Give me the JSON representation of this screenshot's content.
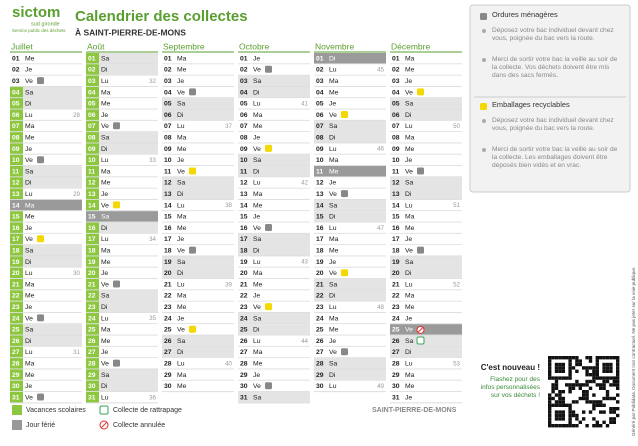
{
  "header": {
    "logo": "sictom",
    "logo_sub": "sud gironde",
    "logo_tag": "Service public des déchets",
    "title": "Calendrier des collectes",
    "subtitle": "À SAINT-PIERRE-DE-MONS"
  },
  "months": [
    {
      "name": "Juillet",
      "days": [
        {
          "d": "01",
          "w": "Me"
        },
        {
          "d": "02",
          "w": "Je"
        },
        {
          "d": "03",
          "w": "Ve",
          "c": "om"
        },
        {
          "d": "04",
          "w": "Sa",
          "s": "vac"
        },
        {
          "d": "05",
          "w": "Di",
          "s": "vac"
        },
        {
          "d": "06",
          "w": "Lu",
          "wk": "28",
          "s": "vac"
        },
        {
          "d": "07",
          "w": "Ma",
          "s": "vac"
        },
        {
          "d": "08",
          "w": "Me",
          "s": "vac"
        },
        {
          "d": "09",
          "w": "Je",
          "s": "vac"
        },
        {
          "d": "10",
          "w": "Ve",
          "c": "om",
          "s": "vac"
        },
        {
          "d": "11",
          "w": "Sa",
          "s": "vac"
        },
        {
          "d": "12",
          "w": "Di",
          "s": "vac"
        },
        {
          "d": "13",
          "w": "Lu",
          "wk": "29",
          "s": "vac"
        },
        {
          "d": "14",
          "w": "Ma",
          "s": "ferie"
        },
        {
          "d": "15",
          "w": "Me",
          "s": "vac"
        },
        {
          "d": "16",
          "w": "Je",
          "s": "vac"
        },
        {
          "d": "17",
          "w": "Ve",
          "c": "rec",
          "s": "vac"
        },
        {
          "d": "18",
          "w": "Sa",
          "s": "vac"
        },
        {
          "d": "19",
          "w": "Di",
          "s": "vac"
        },
        {
          "d": "20",
          "w": "Lu",
          "wk": "30",
          "s": "vac"
        },
        {
          "d": "21",
          "w": "Ma",
          "s": "vac"
        },
        {
          "d": "22",
          "w": "Me",
          "s": "vac"
        },
        {
          "d": "23",
          "w": "Je",
          "s": "vac"
        },
        {
          "d": "24",
          "w": "Ve",
          "c": "om",
          "s": "vac"
        },
        {
          "d": "25",
          "w": "Sa",
          "s": "vac"
        },
        {
          "d": "26",
          "w": "Di",
          "s": "vac"
        },
        {
          "d": "27",
          "w": "Lu",
          "wk": "31",
          "s": "vac"
        },
        {
          "d": "28",
          "w": "Ma",
          "s": "vac"
        },
        {
          "d": "29",
          "w": "Me",
          "s": "vac"
        },
        {
          "d": "30",
          "w": "Je",
          "s": "vac"
        },
        {
          "d": "31",
          "w": "Ve",
          "c": "om",
          "s": "vac"
        }
      ]
    },
    {
      "name": "Août",
      "days": [
        {
          "d": "01",
          "w": "Sa",
          "s": "vac"
        },
        {
          "d": "02",
          "w": "Di",
          "s": "vac"
        },
        {
          "d": "03",
          "w": "Lu",
          "wk": "32",
          "s": "vac"
        },
        {
          "d": "04",
          "w": "Ma",
          "s": "vac"
        },
        {
          "d": "05",
          "w": "Me",
          "s": "vac"
        },
        {
          "d": "06",
          "w": "Je",
          "s": "vac"
        },
        {
          "d": "07",
          "w": "Ve",
          "c": "om",
          "s": "vac"
        },
        {
          "d": "08",
          "w": "Sa",
          "s": "vac"
        },
        {
          "d": "09",
          "w": "Di",
          "s": "vac"
        },
        {
          "d": "10",
          "w": "Lu",
          "wk": "33",
          "s": "vac"
        },
        {
          "d": "11",
          "w": "Ma",
          "s": "vac"
        },
        {
          "d": "12",
          "w": "Me",
          "s": "vac"
        },
        {
          "d": "13",
          "w": "Je",
          "s": "vac"
        },
        {
          "d": "14",
          "w": "Ve",
          "c": "rec",
          "s": "vac"
        },
        {
          "d": "15",
          "w": "Sa",
          "s": "ferie"
        },
        {
          "d": "16",
          "w": "Di",
          "s": "vac"
        },
        {
          "d": "17",
          "w": "Lu",
          "wk": "34",
          "s": "vac"
        },
        {
          "d": "18",
          "w": "Ma",
          "s": "vac"
        },
        {
          "d": "19",
          "w": "Me",
          "s": "vac"
        },
        {
          "d": "20",
          "w": "Je",
          "s": "vac"
        },
        {
          "d": "21",
          "w": "Ve",
          "c": "om",
          "s": "vac"
        },
        {
          "d": "22",
          "w": "Sa",
          "s": "vac"
        },
        {
          "d": "23",
          "w": "Di",
          "s": "vac"
        },
        {
          "d": "24",
          "w": "Lu",
          "wk": "35",
          "s": "vac"
        },
        {
          "d": "25",
          "w": "Ma",
          "s": "vac"
        },
        {
          "d": "26",
          "w": "Me",
          "s": "vac"
        },
        {
          "d": "27",
          "w": "Je",
          "s": "vac"
        },
        {
          "d": "28",
          "w": "Ve",
          "c": "om",
          "s": "vac"
        },
        {
          "d": "29",
          "w": "Sa",
          "s": "vac"
        },
        {
          "d": "30",
          "w": "Di",
          "s": "vac"
        },
        {
          "d": "31",
          "w": "Lu",
          "wk": "36",
          "s": "vac"
        }
      ]
    },
    {
      "name": "Septembre",
      "days": [
        {
          "d": "01",
          "w": "Ma"
        },
        {
          "d": "02",
          "w": "Me"
        },
        {
          "d": "03",
          "w": "Je"
        },
        {
          "d": "04",
          "w": "Ve",
          "c": "om"
        },
        {
          "d": "05",
          "w": "Sa"
        },
        {
          "d": "06",
          "w": "Di"
        },
        {
          "d": "07",
          "w": "Lu",
          "wk": "37"
        },
        {
          "d": "08",
          "w": "Ma"
        },
        {
          "d": "09",
          "w": "Me"
        },
        {
          "d": "10",
          "w": "Je"
        },
        {
          "d": "11",
          "w": "Ve",
          "c": "rec"
        },
        {
          "d": "12",
          "w": "Sa"
        },
        {
          "d": "13",
          "w": "Di"
        },
        {
          "d": "14",
          "w": "Lu",
          "wk": "38"
        },
        {
          "d": "15",
          "w": "Ma"
        },
        {
          "d": "16",
          "w": "Me"
        },
        {
          "d": "17",
          "w": "Je"
        },
        {
          "d": "18",
          "w": "Ve",
          "c": "om"
        },
        {
          "d": "19",
          "w": "Sa"
        },
        {
          "d": "20",
          "w": "Di"
        },
        {
          "d": "21",
          "w": "Lu",
          "wk": "39"
        },
        {
          "d": "22",
          "w": "Ma"
        },
        {
          "d": "23",
          "w": "Me"
        },
        {
          "d": "24",
          "w": "Je"
        },
        {
          "d": "25",
          "w": "Ve",
          "c": "rec"
        },
        {
          "d": "26",
          "w": "Sa"
        },
        {
          "d": "27",
          "w": "Di"
        },
        {
          "d": "28",
          "w": "Lu",
          "wk": "40"
        },
        {
          "d": "29",
          "w": "Ma"
        },
        {
          "d": "30",
          "w": "Me"
        }
      ]
    },
    {
      "name": "Octobre",
      "days": [
        {
          "d": "01",
          "w": "Je"
        },
        {
          "d": "02",
          "w": "Ve",
          "c": "om"
        },
        {
          "d": "03",
          "w": "Sa"
        },
        {
          "d": "04",
          "w": "Di"
        },
        {
          "d": "05",
          "w": "Lu",
          "wk": "41"
        },
        {
          "d": "06",
          "w": "Ma"
        },
        {
          "d": "07",
          "w": "Me"
        },
        {
          "d": "08",
          "w": "Je"
        },
        {
          "d": "09",
          "w": "Ve",
          "c": "rec"
        },
        {
          "d": "10",
          "w": "Sa"
        },
        {
          "d": "11",
          "w": "Di"
        },
        {
          "d": "12",
          "w": "Lu",
          "wk": "42"
        },
        {
          "d": "13",
          "w": "Ma"
        },
        {
          "d": "14",
          "w": "Me"
        },
        {
          "d": "15",
          "w": "Je"
        },
        {
          "d": "16",
          "w": "Ve",
          "c": "om"
        },
        {
          "d": "17",
          "w": "Sa"
        },
        {
          "d": "18",
          "w": "Di"
        },
        {
          "d": "19",
          "w": "Lu",
          "wk": "43"
        },
        {
          "d": "20",
          "w": "Ma"
        },
        {
          "d": "21",
          "w": "Me"
        },
        {
          "d": "22",
          "w": "Je"
        },
        {
          "d": "23",
          "w": "Ve",
          "c": "rec"
        },
        {
          "d": "24",
          "w": "Sa"
        },
        {
          "d": "25",
          "w": "Di"
        },
        {
          "d": "26",
          "w": "Lu",
          "wk": "44"
        },
        {
          "d": "27",
          "w": "Ma"
        },
        {
          "d": "28",
          "w": "Me"
        },
        {
          "d": "29",
          "w": "Je"
        },
        {
          "d": "30",
          "w": "Ve",
          "c": "om"
        },
        {
          "d": "31",
          "w": "Sa"
        }
      ]
    },
    {
      "name": "Novembre",
      "days": [
        {
          "d": "01",
          "w": "Di",
          "s": "ferie"
        },
        {
          "d": "02",
          "w": "Lu",
          "wk": "45"
        },
        {
          "d": "03",
          "w": "Ma"
        },
        {
          "d": "04",
          "w": "Me"
        },
        {
          "d": "05",
          "w": "Je"
        },
        {
          "d": "06",
          "w": "Ve",
          "c": "rec"
        },
        {
          "d": "07",
          "w": "Sa"
        },
        {
          "d": "08",
          "w": "Di"
        },
        {
          "d": "09",
          "w": "Lu",
          "wk": "46"
        },
        {
          "d": "10",
          "w": "Ma"
        },
        {
          "d": "11",
          "w": "Me",
          "s": "ferie"
        },
        {
          "d": "12",
          "w": "Je"
        },
        {
          "d": "13",
          "w": "Ve",
          "c": "om"
        },
        {
          "d": "14",
          "w": "Sa"
        },
        {
          "d": "15",
          "w": "Di"
        },
        {
          "d": "16",
          "w": "Lu",
          "wk": "47"
        },
        {
          "d": "17",
          "w": "Ma"
        },
        {
          "d": "18",
          "w": "Me"
        },
        {
          "d": "19",
          "w": "Je"
        },
        {
          "d": "20",
          "w": "Ve",
          "c": "rec"
        },
        {
          "d": "21",
          "w": "Sa"
        },
        {
          "d": "22",
          "w": "Di"
        },
        {
          "d": "23",
          "w": "Lu",
          "wk": "48"
        },
        {
          "d": "24",
          "w": "Ma"
        },
        {
          "d": "25",
          "w": "Me"
        },
        {
          "d": "26",
          "w": "Je"
        },
        {
          "d": "27",
          "w": "Ve",
          "c": "om"
        },
        {
          "d": "28",
          "w": "Sa"
        },
        {
          "d": "29",
          "w": "Di"
        },
        {
          "d": "30",
          "w": "Lu",
          "wk": "49"
        }
      ]
    },
    {
      "name": "Décembre",
      "days": [
        {
          "d": "01",
          "w": "Ma"
        },
        {
          "d": "02",
          "w": "Me"
        },
        {
          "d": "03",
          "w": "Je"
        },
        {
          "d": "04",
          "w": "Ve",
          "c": "rec"
        },
        {
          "d": "05",
          "w": "Sa"
        },
        {
          "d": "06",
          "w": "Di"
        },
        {
          "d": "07",
          "w": "Lu",
          "wk": "50"
        },
        {
          "d": "08",
          "w": "Ma"
        },
        {
          "d": "09",
          "w": "Me"
        },
        {
          "d": "10",
          "w": "Je"
        },
        {
          "d": "11",
          "w": "Ve",
          "c": "om"
        },
        {
          "d": "12",
          "w": "Sa"
        },
        {
          "d": "13",
          "w": "Di"
        },
        {
          "d": "14",
          "w": "Lu",
          "wk": "51"
        },
        {
          "d": "15",
          "w": "Ma"
        },
        {
          "d": "16",
          "w": "Me"
        },
        {
          "d": "17",
          "w": "Je"
        },
        {
          "d": "18",
          "w": "Ve",
          "c": "om"
        },
        {
          "d": "19",
          "w": "Sa"
        },
        {
          "d": "20",
          "w": "Di"
        },
        {
          "d": "21",
          "w": "Lu",
          "wk": "52"
        },
        {
          "d": "22",
          "w": "Ma"
        },
        {
          "d": "23",
          "w": "Me"
        },
        {
          "d": "24",
          "w": "Je"
        },
        {
          "d": "25",
          "w": "Ve",
          "c": "annulee",
          "s": "ferie"
        },
        {
          "d": "26",
          "w": "Sa",
          "c": "rattrapage"
        },
        {
          "d": "27",
          "w": "Di"
        },
        {
          "d": "28",
          "w": "Lu",
          "wk": "53"
        },
        {
          "d": "29",
          "w": "Ma"
        },
        {
          "d": "30",
          "w": "Me"
        },
        {
          "d": "31",
          "w": "Je"
        }
      ]
    }
  ],
  "info": {
    "om_title": "Ordures ménagères",
    "om_1": "Déposez votre bac individuel devant chez vous, poignée du bac vers la route.",
    "om_2": "Merci de sortir votre bac la veille au soir de la collecte. Vos déchets doivent être mis dans des sacs fermés.",
    "rec_title": "Emballages recyclables",
    "rec_1": "Déposez votre bac individuel devant chez vous, poignée du bac vers la route.",
    "rec_2": "Merci de sortir votre bac la veille au soir de la collecte. Les emballages doivent être déposés bien vidés et en vrac."
  },
  "nouveau": {
    "title": "C'est nouveau !",
    "text": "Flashez pour des infos personnalisées sur vos déchets !"
  },
  "legend": {
    "vacances": "Vacances scolaires",
    "ferie": "Jour férié",
    "rattrapage": "Collecte de rattrapage",
    "annulee": "Collecte annulée"
  },
  "footer": {
    "commune": "SAINT-PIERRE-DE-MONS",
    "credit": "Généré par Publidata. Document non contractuel. Ne pas jeter sur la voie publique."
  }
}
